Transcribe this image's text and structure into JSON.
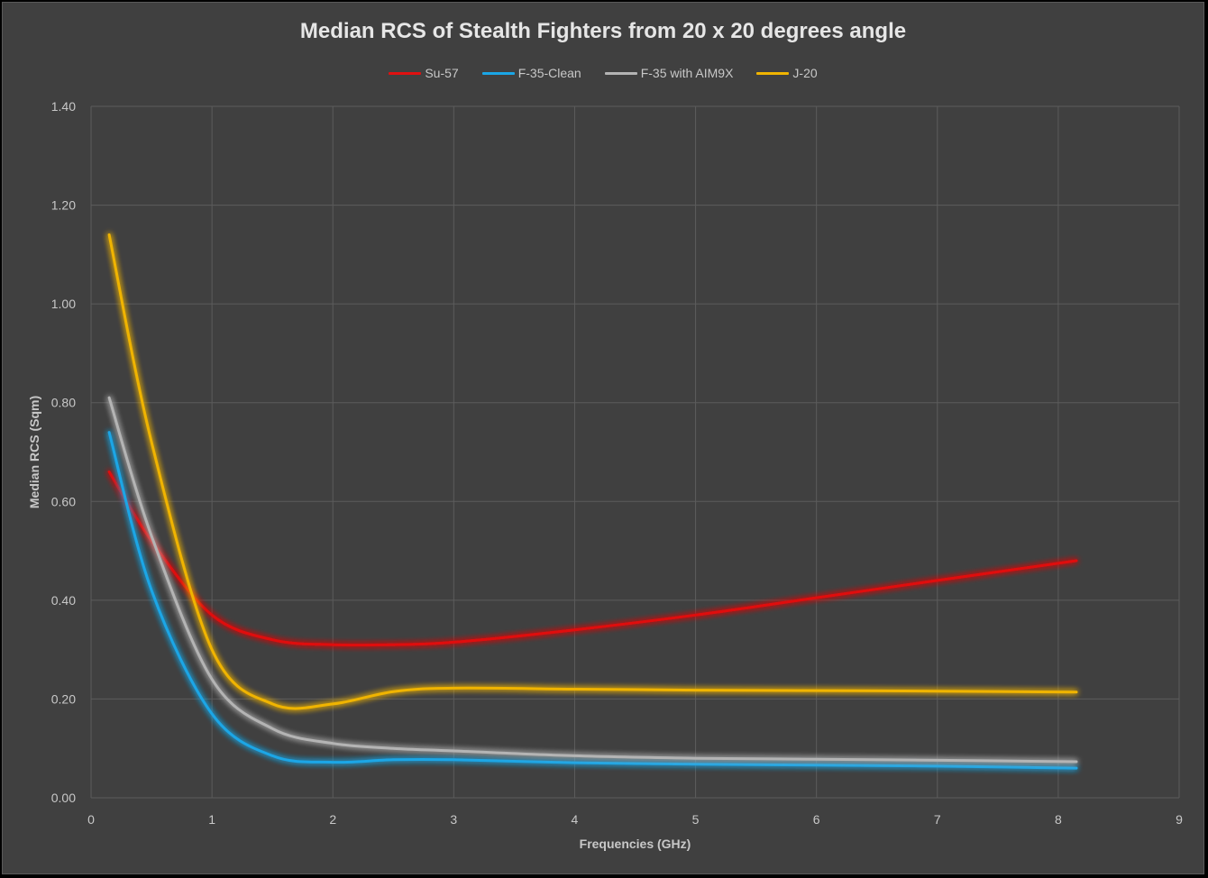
{
  "chart_data": {
    "type": "line",
    "title": "Median RCS of Stealth Fighters from 20 x 20 degrees angle",
    "xlabel": "Frequencies (GHz)",
    "ylabel": "Median RCS (Sqm)",
    "xlim": [
      0,
      9
    ],
    "ylim": [
      0,
      1.4
    ],
    "xticks": [
      "0",
      "1",
      "2",
      "3",
      "4",
      "5",
      "6",
      "7",
      "8",
      "9"
    ],
    "yticks": [
      "0.00",
      "0.20",
      "0.40",
      "0.60",
      "0.80",
      "1.00",
      "1.20",
      "1.40"
    ],
    "grid": true,
    "legend_position": "top-center",
    "series": [
      {
        "name": "Su-57",
        "color": "#e01010",
        "x": [
          0.15,
          0.5,
          1.0,
          1.5,
          2.0,
          2.5,
          3.0,
          4.0,
          5.0,
          6.0,
          7.0,
          8.15
        ],
        "y": [
          0.66,
          0.52,
          0.37,
          0.32,
          0.31,
          0.31,
          0.315,
          0.34,
          0.37,
          0.405,
          0.44,
          0.48
        ]
      },
      {
        "name": "F-35-Clean",
        "color": "#1aa6e6",
        "x": [
          0.15,
          0.5,
          1.0,
          1.5,
          2.0,
          2.5,
          3.0,
          4.0,
          5.0,
          6.0,
          7.0,
          8.15
        ],
        "y": [
          0.74,
          0.42,
          0.17,
          0.085,
          0.072,
          0.077,
          0.077,
          0.071,
          0.068,
          0.066,
          0.064,
          0.06
        ]
      },
      {
        "name": "F-35 with AIM9X",
        "color": "#b4b4b4",
        "x": [
          0.15,
          0.5,
          1.0,
          1.5,
          2.0,
          2.5,
          3.0,
          4.0,
          5.0,
          6.0,
          7.0,
          8.15
        ],
        "y": [
          0.81,
          0.53,
          0.24,
          0.14,
          0.11,
          0.1,
          0.095,
          0.085,
          0.08,
          0.078,
          0.076,
          0.073
        ]
      },
      {
        "name": "J-20",
        "color": "#f0b400",
        "x": [
          0.15,
          0.5,
          1.0,
          1.5,
          2.0,
          2.5,
          3.0,
          4.0,
          5.0,
          6.0,
          7.0,
          8.15
        ],
        "y": [
          1.14,
          0.72,
          0.3,
          0.19,
          0.19,
          0.215,
          0.222,
          0.22,
          0.218,
          0.217,
          0.216,
          0.214
        ]
      }
    ]
  }
}
